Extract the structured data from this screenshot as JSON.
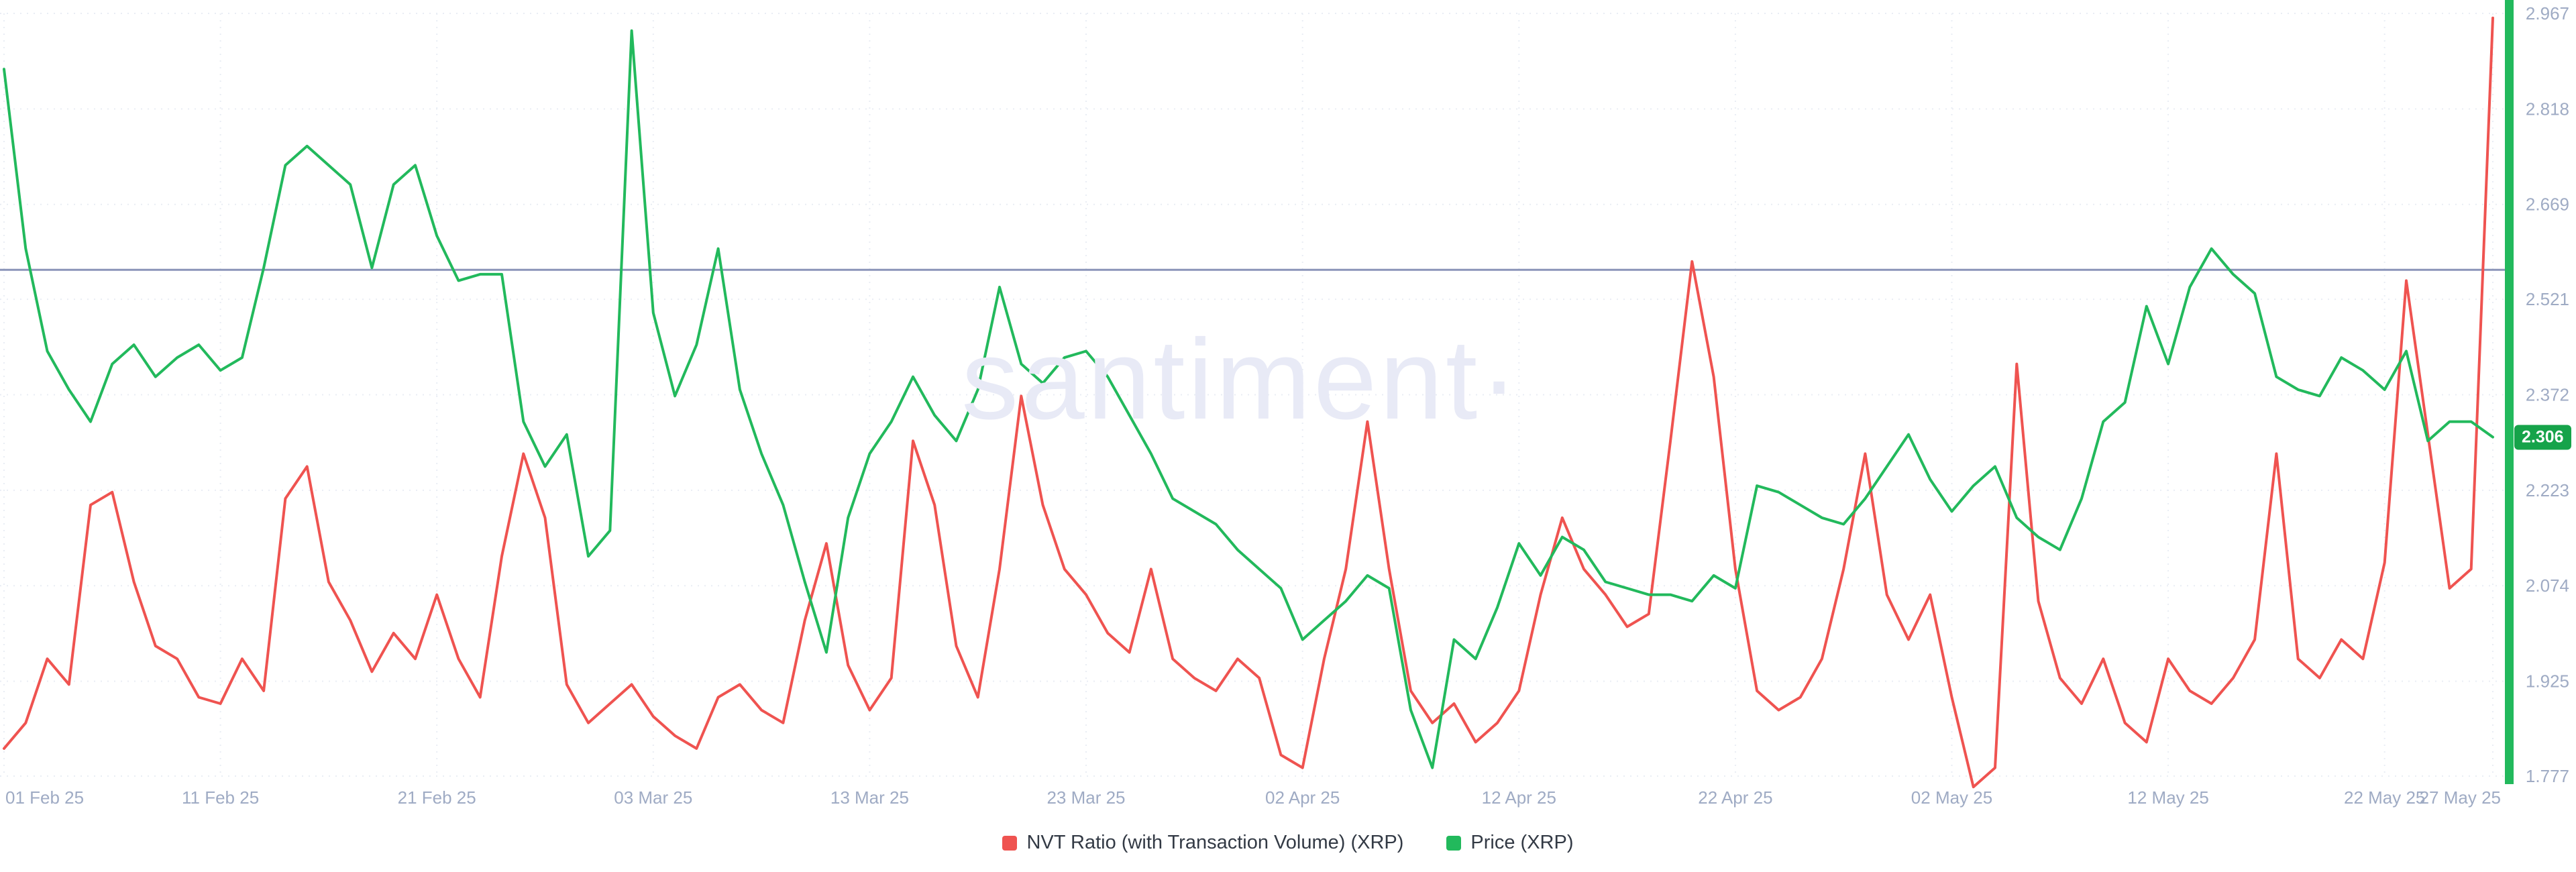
{
  "watermark": "santiment·",
  "price_badge": "2.306",
  "legend": [
    {
      "label": "NVT Ratio (with Transaction Volume) (XRP)",
      "color": "#ef5350"
    },
    {
      "label": "Price (XRP)",
      "color": "#22b95c"
    }
  ],
  "colors": {
    "nvt_line": "#ef5350",
    "price_line": "#22b95c",
    "axis_strip": "#22b95c",
    "badge_bg": "#16a34a",
    "annotation_line": "#8a94b8",
    "grid": "#e9edf4",
    "tick_text": "#9fabc4",
    "legend_text": "#333a45",
    "watermark_text": "#e8eaf6",
    "background": "#ffffff"
  },
  "chart_data": {
    "type": "line",
    "title": "",
    "xlabel": "",
    "ylabel": "",
    "grid": true,
    "legend_position": "bottom",
    "ylim": [
      1.777,
      2.967
    ],
    "y_ticks": [
      "2.967",
      "2.818",
      "2.669",
      "2.521",
      "2.372",
      "2.223",
      "2.074",
      "1.925",
      "1.777"
    ],
    "x_ticks": [
      {
        "label": "01 Feb 25",
        "index": 0
      },
      {
        "label": "11 Feb 25",
        "index": 10
      },
      {
        "label": "21 Feb 25",
        "index": 20
      },
      {
        "label": "03 Mar 25",
        "index": 30
      },
      {
        "label": "13 Mar 25",
        "index": 40
      },
      {
        "label": "23 Mar 25",
        "index": 50
      },
      {
        "label": "02 Apr 25",
        "index": 60
      },
      {
        "label": "12 Apr 25",
        "index": 70
      },
      {
        "label": "22 Apr 25",
        "index": 80
      },
      {
        "label": "02 May 25",
        "index": 90
      },
      {
        "label": "12 May 25",
        "index": 100
      },
      {
        "label": "22 May 25",
        "index": 110
      },
      {
        "label": "27 May 25",
        "index": 115
      }
    ],
    "annotation_line_value": 2.567,
    "last_price": 2.306,
    "x": [
      "2025-02-01",
      "2025-02-02",
      "2025-02-03",
      "2025-02-04",
      "2025-02-05",
      "2025-02-06",
      "2025-02-07",
      "2025-02-08",
      "2025-02-09",
      "2025-02-10",
      "2025-02-11",
      "2025-02-12",
      "2025-02-13",
      "2025-02-14",
      "2025-02-15",
      "2025-02-16",
      "2025-02-17",
      "2025-02-18",
      "2025-02-19",
      "2025-02-20",
      "2025-02-21",
      "2025-02-22",
      "2025-02-23",
      "2025-02-24",
      "2025-02-25",
      "2025-02-26",
      "2025-02-27",
      "2025-02-28",
      "2025-03-01",
      "2025-03-02",
      "2025-03-03",
      "2025-03-04",
      "2025-03-05",
      "2025-03-06",
      "2025-03-07",
      "2025-03-08",
      "2025-03-09",
      "2025-03-10",
      "2025-03-11",
      "2025-03-12",
      "2025-03-13",
      "2025-03-14",
      "2025-03-15",
      "2025-03-16",
      "2025-03-17",
      "2025-03-18",
      "2025-03-19",
      "2025-03-20",
      "2025-03-21",
      "2025-03-22",
      "2025-03-23",
      "2025-03-24",
      "2025-03-25",
      "2025-03-26",
      "2025-03-27",
      "2025-03-28",
      "2025-03-29",
      "2025-03-30",
      "2025-03-31",
      "2025-04-01",
      "2025-04-02",
      "2025-04-03",
      "2025-04-04",
      "2025-04-05",
      "2025-04-06",
      "2025-04-07",
      "2025-04-08",
      "2025-04-09",
      "2025-04-10",
      "2025-04-11",
      "2025-04-12",
      "2025-04-13",
      "2025-04-14",
      "2025-04-15",
      "2025-04-16",
      "2025-04-17",
      "2025-04-18",
      "2025-04-19",
      "2025-04-20",
      "2025-04-21",
      "2025-04-22",
      "2025-04-23",
      "2025-04-24",
      "2025-04-25",
      "2025-04-26",
      "2025-04-27",
      "2025-04-28",
      "2025-04-29",
      "2025-04-30",
      "2025-05-01",
      "2025-05-02",
      "2025-05-03",
      "2025-05-04",
      "2025-05-05",
      "2025-05-06",
      "2025-05-07",
      "2025-05-08",
      "2025-05-09",
      "2025-05-10",
      "2025-05-11",
      "2025-05-12",
      "2025-05-13",
      "2025-05-14",
      "2025-05-15",
      "2025-05-16",
      "2025-05-17",
      "2025-05-18",
      "2025-05-19",
      "2025-05-20",
      "2025-05-21",
      "2025-05-22",
      "2025-05-23",
      "2025-05-24",
      "2025-05-25",
      "2025-05-26",
      "2025-05-27"
    ],
    "series": [
      {
        "name": "NVT Ratio (with Transaction Volume) (XRP)",
        "color": "#ef5350",
        "values": [
          1.82,
          1.86,
          1.96,
          1.92,
          2.2,
          2.22,
          2.08,
          1.98,
          1.96,
          1.9,
          1.89,
          1.96,
          1.91,
          2.21,
          2.26,
          2.08,
          2.02,
          1.94,
          2.0,
          1.96,
          2.06,
          1.96,
          1.9,
          2.12,
          2.28,
          2.18,
          1.92,
          1.86,
          1.89,
          1.92,
          1.87,
          1.84,
          1.82,
          1.9,
          1.92,
          1.88,
          1.86,
          2.02,
          2.14,
          1.95,
          1.88,
          1.93,
          2.3,
          2.2,
          1.98,
          1.9,
          2.1,
          2.37,
          2.2,
          2.1,
          2.06,
          2.0,
          1.97,
          2.1,
          1.96,
          1.93,
          1.91,
          1.96,
          1.93,
          1.81,
          1.79,
          1.96,
          2.1,
          2.33,
          2.1,
          1.91,
          1.86,
          1.89,
          1.83,
          1.86,
          1.91,
          2.06,
          2.18,
          2.1,
          2.06,
          2.01,
          2.03,
          2.3,
          2.58,
          2.4,
          2.1,
          1.91,
          1.88,
          1.9,
          1.96,
          2.1,
          2.28,
          2.06,
          1.99,
          2.06,
          1.9,
          1.76,
          1.79,
          2.42,
          2.05,
          1.93,
          1.89,
          1.96,
          1.86,
          1.83,
          1.96,
          1.91,
          1.89,
          1.93,
          1.99,
          2.28,
          1.96,
          1.93,
          1.99,
          1.96,
          2.11,
          2.55,
          2.31,
          2.07,
          2.1,
          2.96
        ]
      },
      {
        "name": "Price (XRP)",
        "color": "#22b95c",
        "values": [
          2.88,
          2.6,
          2.44,
          2.38,
          2.33,
          2.42,
          2.45,
          2.4,
          2.43,
          2.45,
          2.41,
          2.43,
          2.57,
          2.73,
          2.76,
          2.73,
          2.7,
          2.57,
          2.7,
          2.73,
          2.62,
          2.55,
          2.56,
          2.56,
          2.33,
          2.26,
          2.31,
          2.12,
          2.16,
          2.94,
          2.5,
          2.37,
          2.45,
          2.6,
          2.38,
          2.28,
          2.2,
          2.08,
          1.97,
          2.18,
          2.28,
          2.33,
          2.4,
          2.34,
          2.3,
          2.38,
          2.54,
          2.42,
          2.39,
          2.43,
          2.44,
          2.4,
          2.34,
          2.28,
          2.21,
          2.19,
          2.17,
          2.13,
          2.1,
          2.07,
          1.99,
          2.02,
          2.05,
          2.09,
          2.07,
          1.88,
          1.79,
          1.99,
          1.96,
          2.04,
          2.14,
          2.09,
          2.15,
          2.13,
          2.08,
          2.07,
          2.06,
          2.06,
          2.05,
          2.09,
          2.07,
          2.23,
          2.22,
          2.2,
          2.18,
          2.17,
          2.21,
          2.26,
          2.31,
          2.24,
          2.19,
          2.23,
          2.26,
          2.18,
          2.15,
          2.13,
          2.21,
          2.33,
          2.36,
          2.51,
          2.42,
          2.54,
          2.6,
          2.56,
          2.53,
          2.4,
          2.38,
          2.37,
          2.43,
          2.41,
          2.38,
          2.44,
          2.3,
          2.33,
          2.33,
          2.306
        ]
      }
    ]
  }
}
